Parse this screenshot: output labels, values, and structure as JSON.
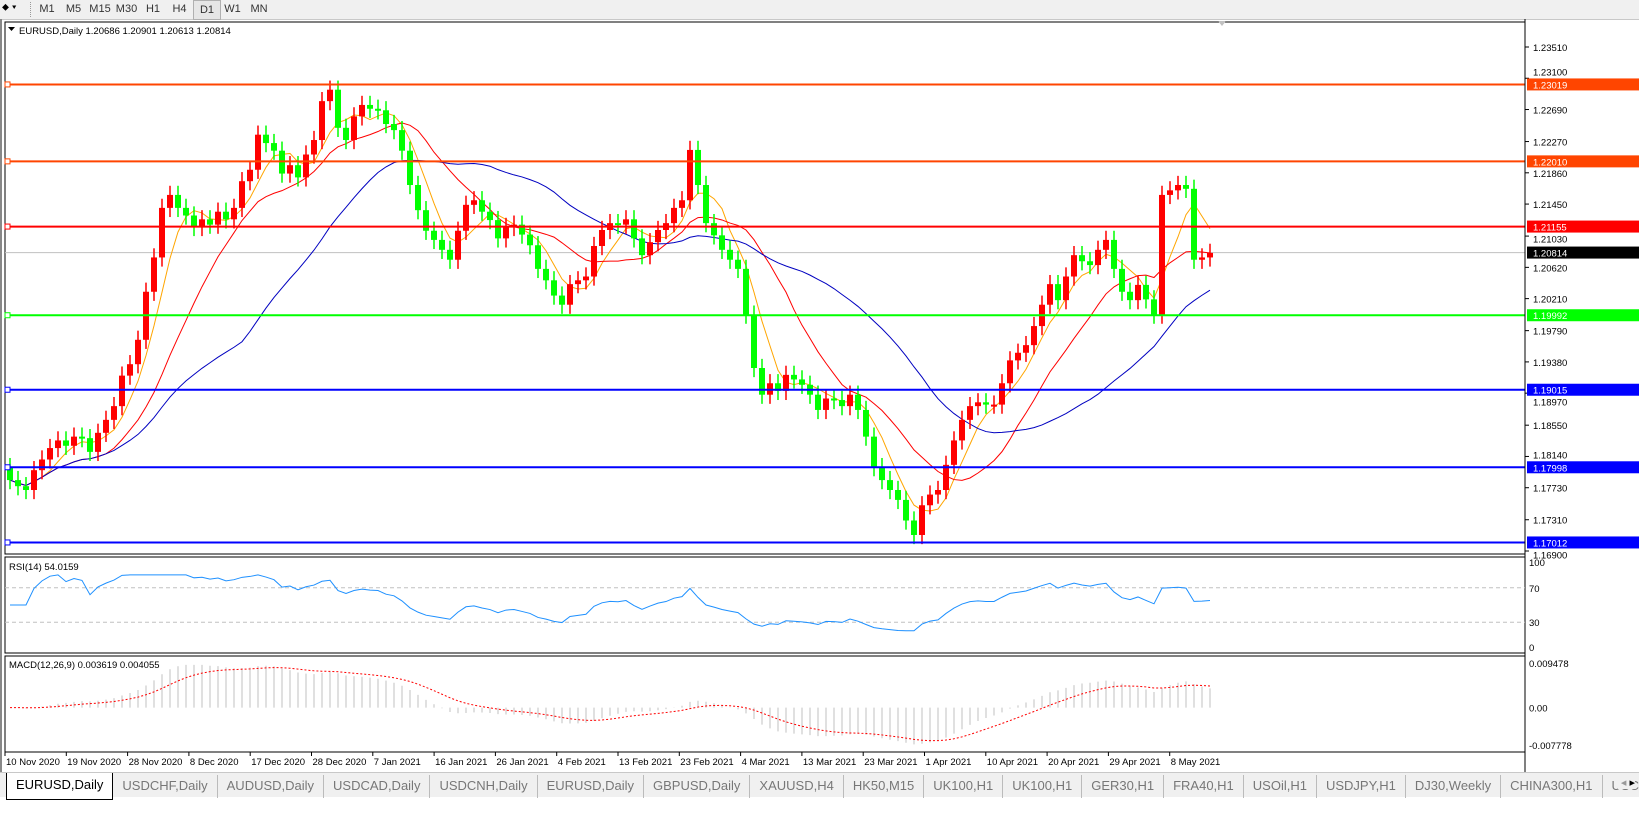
{
  "toolbar": {
    "timeframes": [
      "M1",
      "M5",
      "M15",
      "M30",
      "H1",
      "H4",
      "D1",
      "W1",
      "MN"
    ],
    "active": "D1"
  },
  "chart": {
    "header": "EURUSD,Daily  1.20686 1.20901 1.20613 1.20814",
    "symbol": "EURUSD",
    "period": "Daily",
    "ohlc_last": {
      "open": "1.20686",
      "high": "1.20901",
      "low": "1.20613",
      "close": "1.20814"
    },
    "bull_color": "#ff0000",
    "bear_color": "#00ff00",
    "current_price": "1.20814",
    "price_ticks": [
      "1.23510",
      "1.23100",
      "1.22690",
      "1.22270",
      "1.21860",
      "1.21450",
      "1.21030",
      "1.20620",
      "1.20210",
      "1.19790",
      "1.19380",
      "1.18970",
      "1.18550",
      "1.18140",
      "1.17730",
      "1.17310",
      "1.16900"
    ],
    "levels": [
      {
        "price": "1.23019",
        "color": "#ff4500"
      },
      {
        "price": "1.22010",
        "color": "#ff4500"
      },
      {
        "price": "1.21155",
        "color": "#ff0000"
      },
      {
        "price": "1.19992",
        "color": "#00ff00"
      },
      {
        "price": "1.19015",
        "color": "#0000ff"
      },
      {
        "price": "1.17998",
        "color": "#0000ff"
      },
      {
        "price": "1.17012",
        "color": "#0000ff"
      }
    ],
    "ma_colors": [
      "#ffa500",
      "#ff0000",
      "#0000c0"
    ],
    "dates": [
      "10 Nov 2020",
      "19 Nov 2020",
      "28 Nov 2020",
      "8 Dec 2020",
      "17 Dec 2020",
      "28 Dec 2020",
      "7 Jan 2021",
      "16 Jan 2021",
      "26 Jan 2021",
      "4 Feb 2021",
      "13 Feb 2021",
      "23 Feb 2021",
      "4 Mar 2021",
      "13 Mar 2021",
      "23 Mar 2021",
      "1 Apr 2021",
      "10 Apr 2021",
      "20 Apr 2021",
      "29 Apr 2021",
      "8 May 2021"
    ]
  },
  "chart_data": {
    "type": "candlestick",
    "symbol": "EURUSD",
    "timeframe": "Daily",
    "ylim": [
      1.169,
      1.2351
    ],
    "closes": [
      1.1783,
      1.1775,
      1.177,
      1.1796,
      1.181,
      1.1825,
      1.1835,
      1.1828,
      1.184,
      1.1838,
      1.182,
      1.1845,
      1.1862,
      1.188,
      1.192,
      1.1935,
      1.1967,
      1.203,
      1.2075,
      1.214,
      1.2157,
      1.214,
      1.213,
      1.2115,
      1.2125,
      1.2118,
      1.2135,
      1.2125,
      1.214,
      1.2175,
      1.219,
      1.2236,
      1.2225,
      1.2215,
      1.2185,
      1.2196,
      1.218,
      1.221,
      1.2229,
      1.228,
      1.2295,
      1.2245,
      1.2229,
      1.226,
      1.2275,
      1.227,
      1.2268,
      1.225,
      1.2242,
      1.2215,
      1.217,
      1.2137,
      1.211,
      1.2098,
      1.2085,
      1.2072,
      1.211,
      1.2144,
      1.215,
      1.2135,
      1.2124,
      1.21,
      1.2115,
      1.2118,
      1.2105,
      1.2091,
      1.206,
      1.2045,
      1.2025,
      1.2013,
      1.204,
      1.2045,
      1.205,
      1.209,
      1.2111,
      1.212,
      1.2118,
      1.2125,
      1.21,
      1.2078,
      1.2095,
      1.2111,
      1.212,
      1.214,
      1.215,
      1.2216,
      1.217,
      1.212,
      1.2104,
      1.2085,
      1.2072,
      1.206,
      1.2,
      1.193,
      1.1895,
      1.191,
      1.19,
      1.1921,
      1.1915,
      1.1908,
      1.1895,
      1.1875,
      1.189,
      1.1888,
      1.188,
      1.1895,
      1.1875,
      1.184,
      1.18,
      1.1783,
      1.177,
      1.1757,
      1.173,
      1.1711,
      1.175,
      1.1764,
      1.177,
      1.1803,
      1.1835,
      1.1862,
      1.188,
      1.1885,
      1.1882,
      1.1882,
      1.191,
      1.194,
      1.195,
      1.196,
      1.1985,
      1.2013,
      1.204,
      1.2019,
      1.205,
      1.2078,
      1.207,
      1.2065,
      1.2085,
      1.2098,
      1.206,
      1.203,
      1.2019,
      1.2039,
      1.202,
      1.2,
      1.2157,
      1.2163,
      1.217,
      1.2165,
      1.2072,
      1.2075,
      1.2081
    ],
    "rsi": {
      "label": "RSI(14) 54.0159",
      "levels": [
        "100",
        "70",
        "30",
        "0"
      ]
    },
    "macd": {
      "label": "MACD(12,26,9) 0.003619 0.004055",
      "ticks": [
        "0.009478",
        "0.00",
        "-0.007778"
      ],
      "hist_color": "#c0c0c0",
      "signal_color": "#ff0000"
    }
  },
  "tabs": {
    "items": [
      "EURUSD,Daily",
      "USDCHF,Daily",
      "AUDUSD,Daily",
      "USDCAD,Daily",
      "USDCNH,Daily",
      "EURUSD,Daily",
      "GBPUSD,Daily",
      "XAUUSD,H4",
      "HK50,M15",
      "UK100,H1",
      "UK100,H1",
      "GER30,H1",
      "FRA40,H1",
      "USOil,H1",
      "USDJPY,H1",
      "DJ30,Weekly",
      "CHINA300,H1",
      "USC"
    ],
    "active": 0,
    "scroll_left": "◂",
    "scroll_right": "▸"
  }
}
